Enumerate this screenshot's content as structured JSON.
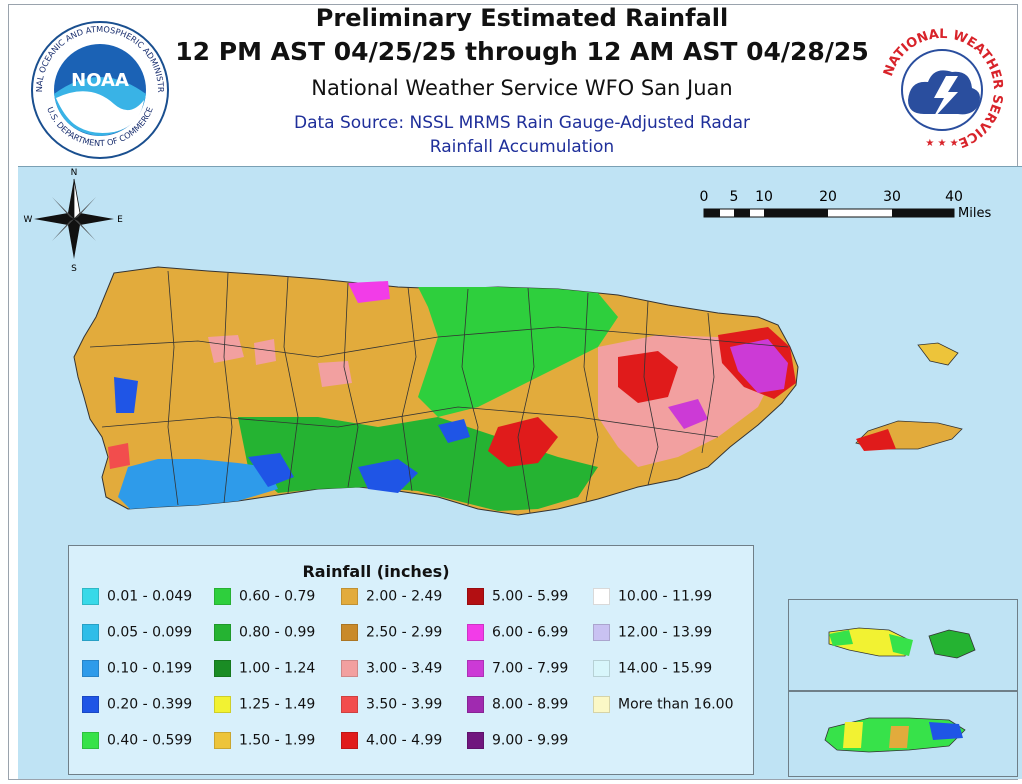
{
  "header": {
    "title": "Preliminary Estimated Rainfall",
    "period": "12 PM AST 04/25/25 through 12 AM AST 04/28/25",
    "office": "National Weather Service WFO San Juan",
    "source": "Data Source: NSSL MRMS Rain Gauge-Adjusted Radar",
    "product": "Rainfall Accumulation"
  },
  "logos": {
    "noaa_ring": "NATIONAL OCEANIC AND ATMOSPHERIC ADMINISTRATION",
    "noaa_dept": "U.S. DEPARTMENT OF COMMERCE",
    "noaa_center": "NOAA",
    "nws_ring": "NATIONAL WEATHER SERVICE"
  },
  "compass": {
    "n": "N",
    "s": "S",
    "e": "E",
    "w": "W"
  },
  "scale": {
    "ticks": [
      "0",
      "5",
      "10",
      "20",
      "30",
      "40"
    ],
    "unit": "Miles"
  },
  "legend": {
    "title": "Rainfall (inches)",
    "items": [
      {
        "label": "0.01 - 0.049",
        "color": "#38d9e8"
      },
      {
        "label": "0.05 - 0.099",
        "color": "#2fbde8"
      },
      {
        "label": "0.10 - 0.199",
        "color": "#2e9bea"
      },
      {
        "label": "0.20 - 0.399",
        "color": "#1f55e6"
      },
      {
        "label": "0.40 - 0.599",
        "color": "#37e24a"
      },
      {
        "label": "0.60 - 0.79",
        "color": "#2ecf3d"
      },
      {
        "label": "0.80 - 0.99",
        "color": "#25b332"
      },
      {
        "label": "1.00 - 1.24",
        "color": "#1a8c24"
      },
      {
        "label": "1.25 - 1.49",
        "color": "#f2f232"
      },
      {
        "label": "1.50 - 1.99",
        "color": "#edc43a"
      },
      {
        "label": "2.00 - 2.49",
        "color": "#e2ab3c"
      },
      {
        "label": "2.50 - 2.99",
        "color": "#c98a2a"
      },
      {
        "label": "3.00 - 3.49",
        "color": "#f2a0a0"
      },
      {
        "label": "3.50 - 3.99",
        "color": "#f24d4d"
      },
      {
        "label": "4.00 - 4.99",
        "color": "#e01b1b"
      },
      {
        "label": "5.00 - 5.99",
        "color": "#b30f12"
      },
      {
        "label": "6.00 - 6.99",
        "color": "#f23ce8"
      },
      {
        "label": "7.00 - 7.99",
        "color": "#cc3ad6"
      },
      {
        "label": "8.00 - 8.99",
        "color": "#a02ab0"
      },
      {
        "label": "9.00 - 9.99",
        "color": "#70167e"
      },
      {
        "label": "10.00 - 11.99",
        "color": "#ffffff"
      },
      {
        "label": "12.00 - 13.99",
        "color": "#c9c2f2"
      },
      {
        "label": "14.00 - 15.99",
        "color": "#d8f6fb"
      },
      {
        "label": "More than 16.00",
        "color": "#fbf8c6"
      }
    ]
  },
  "colors": {
    "ocean": "#bfe3f4",
    "title_blue": "#1f2f9a",
    "noaa_blue": "#1b62b5",
    "nws_red": "#d8232a"
  }
}
